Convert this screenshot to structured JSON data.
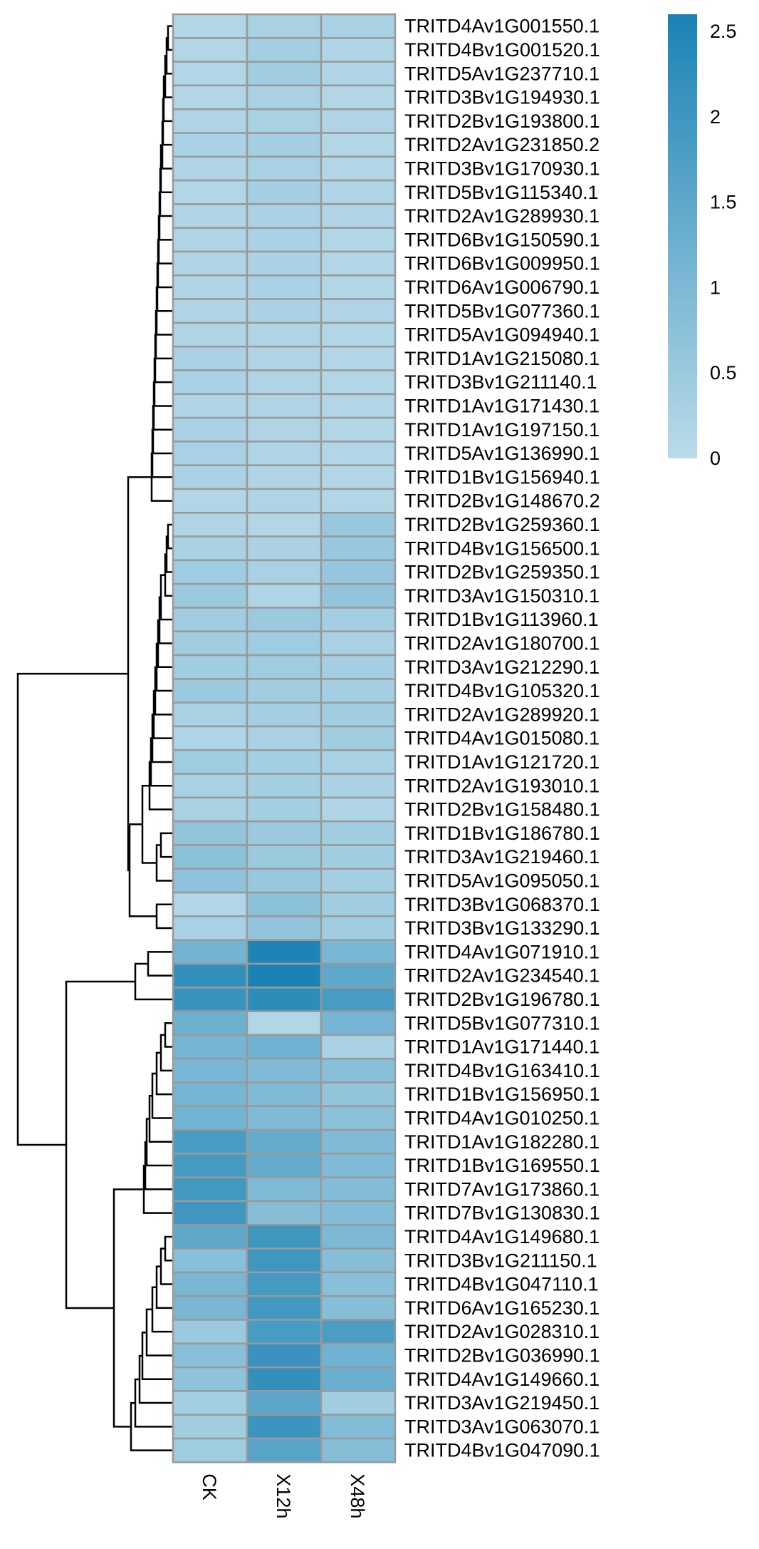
{
  "chart_data": {
    "type": "heatmap",
    "title": "",
    "columns": [
      "CK",
      "X12h",
      "X48h"
    ],
    "rows": [
      "TRITD4Av1G001550.1",
      "TRITD4Bv1G001520.1",
      "TRITD5Av1G237710.1",
      "TRITD3Bv1G194930.1",
      "TRITD2Bv1G193800.1",
      "TRITD2Av1G231850.2",
      "TRITD3Bv1G170930.1",
      "TRITD5Bv1G115340.1",
      "TRITD2Av1G289930.1",
      "TRITD6Bv1G150590.1",
      "TRITD6Bv1G009950.1",
      "TRITD6Av1G006790.1",
      "TRITD5Bv1G077360.1",
      "TRITD5Av1G094940.1",
      "TRITD1Av1G215080.1",
      "TRITD3Bv1G211140.1",
      "TRITD1Av1G171430.1",
      "TRITD1Av1G197150.1",
      "TRITD5Av1G136990.1",
      "TRITD1Bv1G156940.1",
      "TRITD2Bv1G148670.2",
      "TRITD2Bv1G259360.1",
      "TRITD4Bv1G156500.1",
      "TRITD2Bv1G259350.1",
      "TRITD3Av1G150310.1",
      "TRITD1Bv1G113960.1",
      "TRITD2Av1G180700.1",
      "TRITD3Av1G212290.1",
      "TRITD4Bv1G105320.1",
      "TRITD2Av1G289920.1",
      "TRITD4Av1G015080.1",
      "TRITD1Av1G121720.1",
      "TRITD2Av1G193010.1",
      "TRITD2Bv1G158480.1",
      "TRITD1Bv1G186780.1",
      "TRITD3Av1G219460.1",
      "TRITD5Av1G095050.1",
      "TRITD3Bv1G068370.1",
      "TRITD3Bv1G133290.1",
      "TRITD4Av1G071910.1",
      "TRITD2Av1G234540.1",
      "TRITD2Bv1G196780.1",
      "TRITD5Bv1G077310.1",
      "TRITD1Av1G171440.1",
      "TRITD4Bv1G163410.1",
      "TRITD1Bv1G156950.1",
      "TRITD4Av1G010250.1",
      "TRITD1Av1G182280.1",
      "TRITD1Bv1G169550.1",
      "TRITD7Av1G173860.1",
      "TRITD7Bv1G130830.1",
      "TRITD4Av1G149680.1",
      "TRITD3Bv1G211150.1",
      "TRITD4Bv1G047110.1",
      "TRITD6Av1G165230.1",
      "TRITD2Av1G028310.1",
      "TRITD2Bv1G036990.1",
      "TRITD4Av1G149660.1",
      "TRITD3Av1G219450.1",
      "TRITD3Av1G063070.1",
      "TRITD4Bv1G047090.1"
    ],
    "values": [
      [
        0.15,
        0.3,
        0.3
      ],
      [
        0.15,
        0.35,
        0.2
      ],
      [
        0.15,
        0.4,
        0.2
      ],
      [
        0.15,
        0.3,
        0.15
      ],
      [
        0.2,
        0.3,
        0.2
      ],
      [
        0.25,
        0.35,
        0.15
      ],
      [
        0.2,
        0.3,
        0.15
      ],
      [
        0.15,
        0.35,
        0.2
      ],
      [
        0.2,
        0.25,
        0.2
      ],
      [
        0.2,
        0.25,
        0.15
      ],
      [
        0.2,
        0.25,
        0.15
      ],
      [
        0.2,
        0.25,
        0.15
      ],
      [
        0.2,
        0.25,
        0.2
      ],
      [
        0.2,
        0.2,
        0.15
      ],
      [
        0.25,
        0.2,
        0.15
      ],
      [
        0.25,
        0.2,
        0.15
      ],
      [
        0.2,
        0.2,
        0.15
      ],
      [
        0.25,
        0.2,
        0.15
      ],
      [
        0.3,
        0.2,
        0.15
      ],
      [
        0.25,
        0.2,
        0.15
      ],
      [
        0.15,
        0.2,
        0.15
      ],
      [
        0.2,
        0.15,
        0.55
      ],
      [
        0.3,
        0.25,
        0.55
      ],
      [
        0.45,
        0.3,
        0.6
      ],
      [
        0.5,
        0.2,
        0.65
      ],
      [
        0.4,
        0.5,
        0.35
      ],
      [
        0.4,
        0.45,
        0.3
      ],
      [
        0.4,
        0.45,
        0.35
      ],
      [
        0.5,
        0.4,
        0.35
      ],
      [
        0.3,
        0.35,
        0.4
      ],
      [
        0.2,
        0.3,
        0.4
      ],
      [
        0.45,
        0.35,
        0.3
      ],
      [
        0.3,
        0.35,
        0.25
      ],
      [
        0.3,
        0.35,
        0.2
      ],
      [
        0.65,
        0.5,
        0.4
      ],
      [
        0.75,
        0.5,
        0.4
      ],
      [
        0.7,
        0.55,
        0.35
      ],
      [
        0.15,
        0.75,
        0.4
      ],
      [
        0.3,
        0.65,
        0.4
      ],
      [
        1.15,
        2.55,
        1.05
      ],
      [
        2.2,
        2.6,
        1.5
      ],
      [
        2.1,
        2.3,
        1.85
      ],
      [
        1.25,
        0.15,
        1.1
      ],
      [
        1.1,
        1.2,
        0.3
      ],
      [
        1.05,
        0.95,
        0.8
      ],
      [
        1.1,
        0.95,
        0.65
      ],
      [
        1.15,
        0.95,
        0.75
      ],
      [
        1.85,
        1.4,
        0.95
      ],
      [
        1.9,
        1.4,
        0.95
      ],
      [
        1.95,
        0.95,
        0.9
      ],
      [
        2.0,
        0.85,
        0.9
      ],
      [
        1.5,
        2.0,
        1.0
      ],
      [
        0.8,
        2.0,
        0.85
      ],
      [
        1.05,
        1.9,
        0.8
      ],
      [
        1.05,
        1.95,
        0.85
      ],
      [
        0.5,
        1.85,
        1.8
      ],
      [
        0.8,
        2.1,
        1.2
      ],
      [
        0.7,
        2.2,
        1.3
      ],
      [
        0.35,
        1.55,
        0.4
      ],
      [
        0.4,
        2.05,
        0.9
      ],
      [
        0.45,
        1.6,
        0.85
      ]
    ],
    "legend": {
      "ticks": [
        "0",
        "0.5",
        "1",
        "1.5",
        "2",
        "2.5"
      ],
      "tick_values": [
        0,
        0.5,
        1,
        1.5,
        2,
        2.5
      ],
      "range": [
        0,
        2.6
      ],
      "placement": "top-right",
      "color_low": "#badbe9",
      "color_high": "#1a82b4"
    },
    "dendrogram": "rows",
    "cell_border_color": "#999999"
  }
}
